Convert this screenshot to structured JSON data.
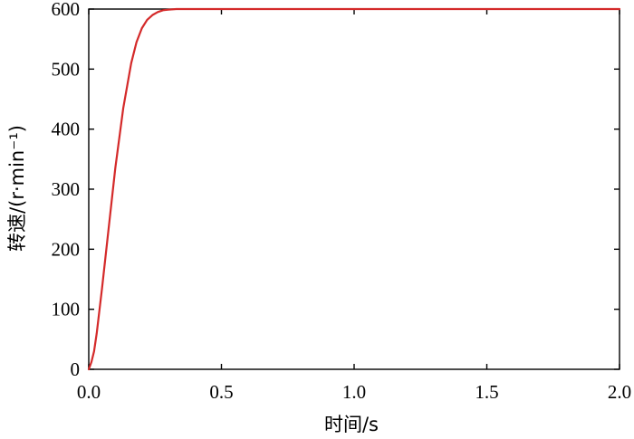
{
  "chart_data": {
    "type": "line",
    "title": "",
    "xlabel": "时间/s",
    "ylabel": "转速/(r·min⁻¹)",
    "xlim": [
      0,
      2.0
    ],
    "ylim": [
      0,
      600
    ],
    "xticks": [
      "0.0",
      "0.5",
      "1.0",
      "1.5",
      "2.0"
    ],
    "yticks": [
      "0",
      "100",
      "200",
      "300",
      "400",
      "500",
      "600"
    ],
    "grid": false,
    "legend": "none",
    "series": [
      {
        "color": "#d42a2a",
        "x": [
          0,
          0.01,
          0.02,
          0.03,
          0.05,
          0.07,
          0.1,
          0.13,
          0.16,
          0.18,
          0.2,
          0.22,
          0.24,
          0.26,
          0.28,
          0.3,
          0.33,
          0.36,
          0.4,
          0.5,
          0.75,
          1.0,
          1.25,
          1.5,
          1.75,
          2.0
        ],
        "values": [
          0,
          12,
          30,
          60,
          135,
          215,
          335,
          435,
          510,
          545,
          568,
          582,
          590,
          595,
          598,
          599,
          600,
          600,
          600,
          600,
          600,
          600,
          600,
          600,
          600,
          600
        ]
      }
    ]
  }
}
